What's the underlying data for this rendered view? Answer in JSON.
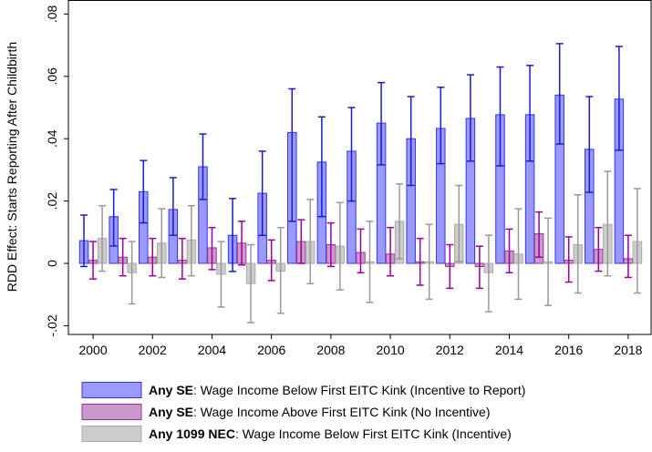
{
  "chart_data": {
    "type": "bar",
    "y_label": "RDD Effect: Starts Reporting After Childbirth",
    "x": [
      2000,
      2001,
      2002,
      2003,
      2004,
      2005,
      2006,
      2007,
      2008,
      2009,
      2010,
      2011,
      2012,
      2013,
      2014,
      2015,
      2016,
      2017,
      2018
    ],
    "xlim": [
      1999.17,
      2018.77
    ],
    "xticks": [
      2000,
      2002,
      2004,
      2006,
      2008,
      2010,
      2012,
      2014,
      2016,
      2018
    ],
    "ylim": [
      -0.0228,
      0.0845
    ],
    "yticks": [
      {
        "value": -0.02,
        "label": "-.02"
      },
      0,
      {
        "value": 0.02,
        "label": ".02"
      },
      {
        "value": 0.04,
        "label": ".04"
      },
      {
        "value": 0.06,
        "label": ".06"
      },
      {
        "value": 0.08,
        "label": ".08"
      }
    ],
    "series": [
      {
        "name": "Any SE: Wage Income Below First EITC Kink (Incentive to Report)",
        "color": "#9999ff",
        "edge": "#3333ee",
        "error_color": "#1a1acc",
        "values": [
          0.0073,
          0.015,
          0.023,
          0.0173,
          0.031,
          0.009,
          0.0225,
          0.042,
          0.0325,
          0.036,
          0.045,
          0.04,
          0.0433,
          0.0465,
          0.0477,
          0.0477,
          0.054,
          0.0366,
          0.0527
        ],
        "ci_low": [
          -0.001,
          0.0056,
          0.013,
          0.009,
          0.0205,
          -0.0026,
          0.009,
          0.0135,
          0.015,
          0.02,
          0.0316,
          0.025,
          0.032,
          0.0328,
          0.0313,
          0.0328,
          0.0383,
          0.0228,
          0.0363
        ],
        "ci_high": [
          0.0155,
          0.0237,
          0.033,
          0.0275,
          0.0415,
          0.0208,
          0.036,
          0.056,
          0.047,
          0.05,
          0.058,
          0.0535,
          0.0565,
          0.0605,
          0.063,
          0.0635,
          0.0705,
          0.0535,
          0.0696
        ]
      },
      {
        "name": "Any SE: Wage Income Above First EITC Kink (No Incentive)",
        "color": "#cc99cc",
        "edge": "#993399",
        "error_color": "#990099",
        "values": [
          0.001,
          0.002,
          0.002,
          0.001,
          0.005,
          0.0065,
          0.001,
          0.007,
          0.006,
          0.0035,
          0.003,
          0.0005,
          -0.001,
          -0.001,
          0.004,
          0.0095,
          0.001,
          0.0045,
          0.0015
        ],
        "ci_low": [
          -0.005,
          -0.004,
          -0.004,
          -0.005,
          -0.002,
          -0.0005,
          -0.0055,
          0.0,
          -0.001,
          -0.003,
          -0.004,
          -0.007,
          -0.008,
          -0.008,
          -0.003,
          0.002,
          -0.006,
          -0.0025,
          -0.0045
        ],
        "ci_high": [
          0.007,
          0.008,
          0.008,
          0.008,
          0.0115,
          0.0135,
          0.0075,
          0.014,
          0.013,
          0.011,
          0.0115,
          0.008,
          0.006,
          0.0055,
          0.011,
          0.0165,
          0.0085,
          0.0115,
          0.009
        ]
      },
      {
        "name": "Any 1099 NEC: Wage Income Below First EITC Kink (Incentive)",
        "color": "#cccccc",
        "edge": "#aaaaaa",
        "error_color": "#999999",
        "values": [
          0.008,
          -0.003,
          0.0065,
          0.0075,
          -0.0035,
          -0.0065,
          -0.0025,
          0.007,
          0.0055,
          0.0005,
          0.0135,
          0.0005,
          0.0125,
          -0.003,
          0.003,
          0.0005,
          0.006,
          0.0125,
          0.007
        ],
        "ci_low": [
          -0.0025,
          -0.013,
          -0.0045,
          -0.004,
          -0.014,
          -0.019,
          -0.016,
          -0.0065,
          -0.0085,
          -0.0125,
          0.0015,
          -0.0115,
          0.0005,
          -0.0155,
          -0.0115,
          -0.0135,
          -0.0095,
          -0.004,
          -0.0095
        ],
        "ci_high": [
          0.0185,
          0.007,
          0.0175,
          0.0185,
          0.007,
          0.006,
          0.0115,
          0.0205,
          0.0195,
          0.0135,
          0.0255,
          0.0125,
          0.025,
          0.009,
          0.0175,
          0.0145,
          0.022,
          0.0295,
          0.024
        ]
      }
    ]
  }
}
